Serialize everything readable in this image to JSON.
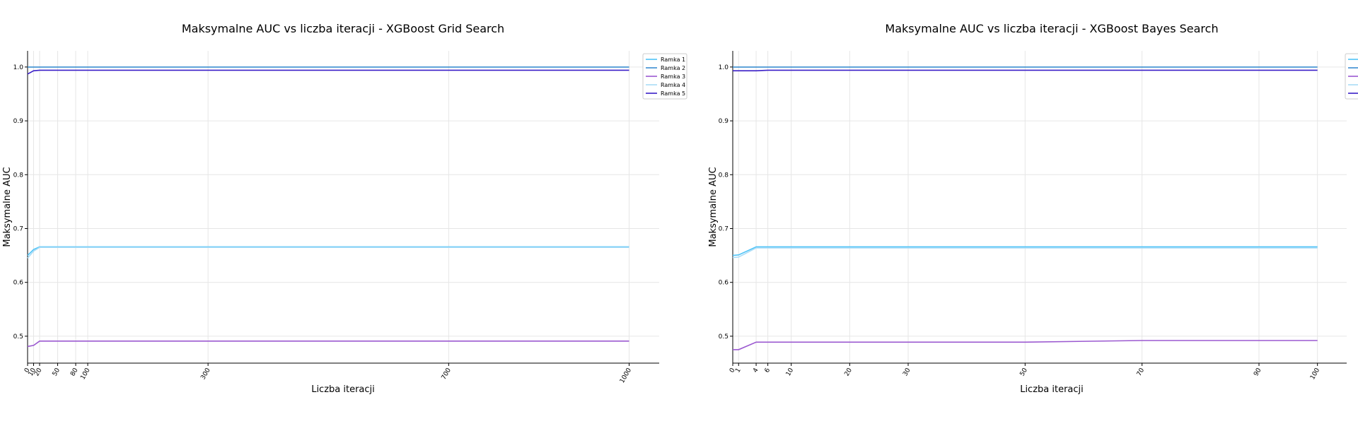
{
  "chart_data": [
    {
      "type": "line",
      "title": "Maksymalne AUC vs liczba iteracji - XGBoost Grid Search",
      "xlabel": "Liczba iteracji",
      "ylabel": "Maksymalne AUC",
      "xlim": [
        0,
        1050
      ],
      "ylim": [
        0.45,
        1.03
      ],
      "xticks": [
        0,
        10,
        20,
        50,
        80,
        100,
        300,
        700,
        1000
      ],
      "yticks": [
        0.5,
        0.6,
        0.7,
        0.8,
        0.9,
        1.0
      ],
      "ytick_labels": [
        "0.5",
        "0.6",
        "0.7",
        "0.8",
        "0.9",
        "1.0"
      ],
      "grid": true,
      "legend": "top-right",
      "legend_visible": true,
      "series": [
        {
          "name": "Ramka 1",
          "color": "#4fc3f7",
          "x": [
            0,
            10,
            20,
            50,
            80,
            100,
            300,
            700,
            1000
          ],
          "y": [
            0.65,
            0.661,
            0.666,
            0.666,
            0.666,
            0.666,
            0.666,
            0.666,
            0.666
          ]
        },
        {
          "name": "Ramka 2",
          "color": "#3b8ed0",
          "x": [
            0,
            10,
            20,
            50,
            80,
            100,
            300,
            700,
            1000
          ],
          "y": [
            1.0,
            1.0,
            1.0,
            1.0,
            1.0,
            1.0,
            1.0,
            1.0,
            1.0
          ]
        },
        {
          "name": "Ramka 3",
          "color": "#9b59d0",
          "x": [
            0,
            10,
            20,
            50,
            80,
            100,
            300,
            700,
            1000
          ],
          "y": [
            0.481,
            0.483,
            0.491,
            0.491,
            0.491,
            0.491,
            0.491,
            0.491,
            0.491
          ]
        },
        {
          "name": "Ramka 4",
          "color": "#a8dcf7",
          "x": [
            0,
            10,
            20,
            50,
            80,
            100,
            300,
            700,
            1000
          ],
          "y": [
            0.645,
            0.658,
            0.665,
            0.665,
            0.665,
            0.665,
            0.665,
            0.665,
            0.665
          ]
        },
        {
          "name": "Ramka 5",
          "color": "#3a1fc7",
          "x": [
            0,
            10,
            20,
            50,
            80,
            100,
            300,
            700,
            1000
          ],
          "y": [
            0.987,
            0.993,
            0.994,
            0.994,
            0.994,
            0.994,
            0.994,
            0.994,
            0.994
          ]
        }
      ]
    },
    {
      "type": "line",
      "title": "Maksymalne AUC vs liczba iteracji - XGBoost Bayes Search",
      "xlabel": "Liczba iteracji",
      "ylabel": "Maksymalne AUC",
      "xlim": [
        0,
        105
      ],
      "ylim": [
        0.45,
        1.03
      ],
      "xticks": [
        0,
        1,
        4,
        6,
        10,
        20,
        30,
        50,
        70,
        90,
        100
      ],
      "yticks": [
        0.5,
        0.6,
        0.7,
        0.8,
        0.9,
        1.0
      ],
      "ytick_labels": [
        "0.5",
        "0.6",
        "0.7",
        "0.8",
        "0.9",
        "1.0"
      ],
      "grid": true,
      "legend": "top-right",
      "legend_visible": false,
      "series": [
        {
          "name": "Ramka 1",
          "color": "#4fc3f7",
          "x": [
            0,
            1,
            4,
            6,
            10,
            20,
            30,
            50,
            70,
            90,
            100
          ],
          "y": [
            0.65,
            0.651,
            0.666,
            0.666,
            0.666,
            0.666,
            0.666,
            0.666,
            0.666,
            0.666,
            0.666
          ]
        },
        {
          "name": "Ramka 2",
          "color": "#3b8ed0",
          "x": [
            0,
            1,
            4,
            6,
            10,
            20,
            30,
            50,
            70,
            90,
            100
          ],
          "y": [
            1.0,
            1.0,
            1.0,
            1.0,
            1.0,
            1.0,
            1.0,
            1.0,
            1.0,
            1.0,
            1.0
          ]
        },
        {
          "name": "Ramka 3",
          "color": "#9b59d0",
          "x": [
            0,
            1,
            4,
            6,
            10,
            20,
            30,
            50,
            70,
            90,
            100
          ],
          "y": [
            0.475,
            0.475,
            0.489,
            0.489,
            0.489,
            0.489,
            0.489,
            0.489,
            0.492,
            0.492,
            0.492
          ]
        },
        {
          "name": "Ramka 4",
          "color": "#a8dcf7",
          "x": [
            0,
            1,
            4,
            6,
            10,
            20,
            30,
            50,
            70,
            90,
            100
          ],
          "y": [
            0.646,
            0.647,
            0.664,
            0.664,
            0.664,
            0.664,
            0.664,
            0.664,
            0.664,
            0.664,
            0.664
          ]
        },
        {
          "name": "Ramka 5",
          "color": "#3a1fc7",
          "x": [
            0,
            1,
            4,
            6,
            10,
            20,
            30,
            50,
            70,
            90,
            100
          ],
          "y": [
            0.993,
            0.993,
            0.993,
            0.994,
            0.994,
            0.994,
            0.994,
            0.994,
            0.994,
            0.994,
            0.994
          ]
        }
      ]
    }
  ]
}
